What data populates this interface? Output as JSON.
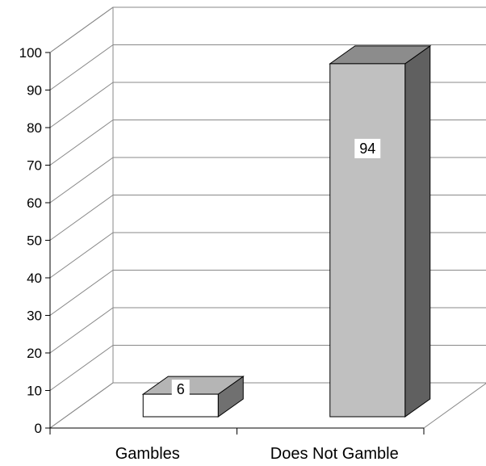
{
  "chart_data": {
    "type": "bar",
    "title": "",
    "xlabel": "",
    "ylabel": "",
    "categories": [
      "Gambles",
      "Does Not Gamble"
    ],
    "values": [
      6,
      94
    ],
    "data_labels": [
      "6",
      "94"
    ],
    "ylim": [
      0,
      100
    ],
    "yticks": [
      0,
      10,
      20,
      30,
      40,
      50,
      60,
      70,
      80,
      90,
      100
    ],
    "grid": true,
    "style": "3d-column",
    "colors": [
      "#ffffff",
      "#c0c0c0"
    ]
  }
}
